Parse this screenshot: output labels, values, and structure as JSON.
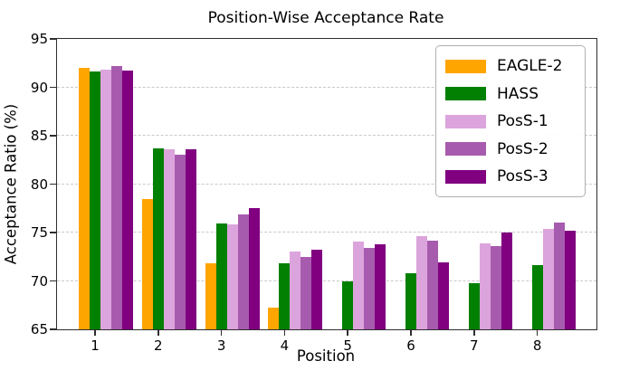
{
  "figure": {
    "background": "#ffffff"
  },
  "chart_data": {
    "type": "bar",
    "title": "Position-Wise Acceptance Rate",
    "xlabel": "Position",
    "ylabel": "Acceptance Ratio (%)",
    "categories": [
      "1",
      "2",
      "3",
      "4",
      "5",
      "6",
      "7",
      "8"
    ],
    "ylim": [
      65,
      95
    ],
    "yticks": [
      65,
      70,
      75,
      80,
      85,
      90,
      95
    ],
    "grid": "horizontal-dashed",
    "legend_position": "upper-right",
    "series": [
      {
        "name": "EAGLE-2",
        "color": "#FFA500",
        "values": [
          92.0,
          78.5,
          71.8,
          67.2,
          null,
          null,
          null,
          null
        ]
      },
      {
        "name": "HASS",
        "color": "#018001",
        "values": [
          91.6,
          83.7,
          75.9,
          71.8,
          70.0,
          70.8,
          69.8,
          71.6
        ]
      },
      {
        "name": "PosS-1",
        "color": "#DCA4DC",
        "values": [
          91.8,
          83.6,
          75.8,
          73.0,
          74.1,
          74.6,
          73.9,
          75.4
        ]
      },
      {
        "name": "PosS-2",
        "color": "#A75BAE",
        "values": [
          92.2,
          83.0,
          76.9,
          72.5,
          73.4,
          74.2,
          73.6,
          76.0
        ]
      },
      {
        "name": "PosS-3",
        "color": "#800080",
        "values": [
          91.7,
          83.6,
          77.5,
          73.2,
          73.8,
          71.9,
          75.0,
          75.2
        ]
      }
    ]
  }
}
